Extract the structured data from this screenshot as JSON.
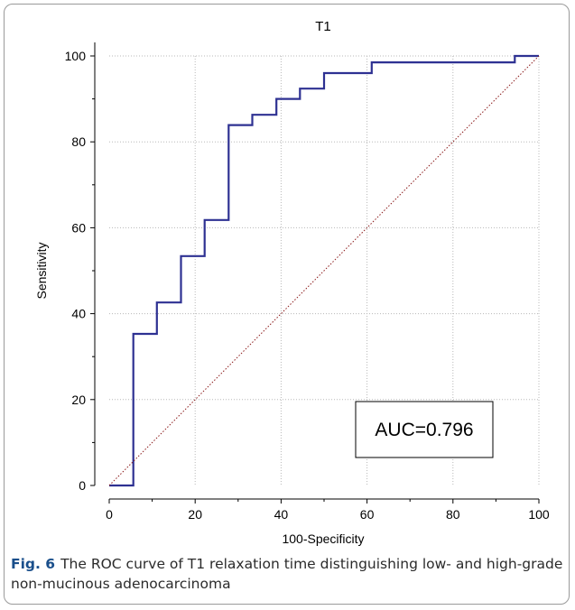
{
  "chart_data": {
    "type": "line",
    "title": "T1",
    "xlabel": "100-Specificity",
    "ylabel": "Sensitivity",
    "xlim": [
      0,
      100
    ],
    "ylim": [
      0,
      100
    ],
    "x_ticks": [
      0,
      20,
      40,
      60,
      80,
      100
    ],
    "y_ticks": [
      0,
      20,
      40,
      60,
      80,
      100
    ],
    "grid": true,
    "series": [
      {
        "color": "#2e3192",
        "step": true,
        "points": [
          [
            0,
            0
          ],
          [
            5.6,
            0
          ],
          [
            5.6,
            35.3
          ],
          [
            11.1,
            35.3
          ],
          [
            11.1,
            42.6
          ],
          [
            16.7,
            42.6
          ],
          [
            16.7,
            53.4
          ],
          [
            22.2,
            53.4
          ],
          [
            22.2,
            61.8
          ],
          [
            27.8,
            61.8
          ],
          [
            27.8,
            83.9
          ],
          [
            33.3,
            83.9
          ],
          [
            33.3,
            86.3
          ],
          [
            38.9,
            86.3
          ],
          [
            38.9,
            90.0
          ],
          [
            44.4,
            90.0
          ],
          [
            44.4,
            92.4
          ],
          [
            50.0,
            92.4
          ],
          [
            50.0,
            96.0
          ],
          [
            61.1,
            96.0
          ],
          [
            61.1,
            98.5
          ],
          [
            94.4,
            98.5
          ],
          [
            94.4,
            100
          ],
          [
            100,
            100
          ]
        ]
      },
      {
        "color": "#8b1a1a",
        "dotted": true,
        "points": [
          [
            0,
            0
          ],
          [
            100,
            100
          ]
        ]
      }
    ],
    "annotation": "AUC=0.796"
  },
  "caption": {
    "label": "Fig. 6",
    "text": "The ROC curve of T1 relaxation time distinguishing low- and high-grade non-mucinous adenocarcinoma"
  }
}
